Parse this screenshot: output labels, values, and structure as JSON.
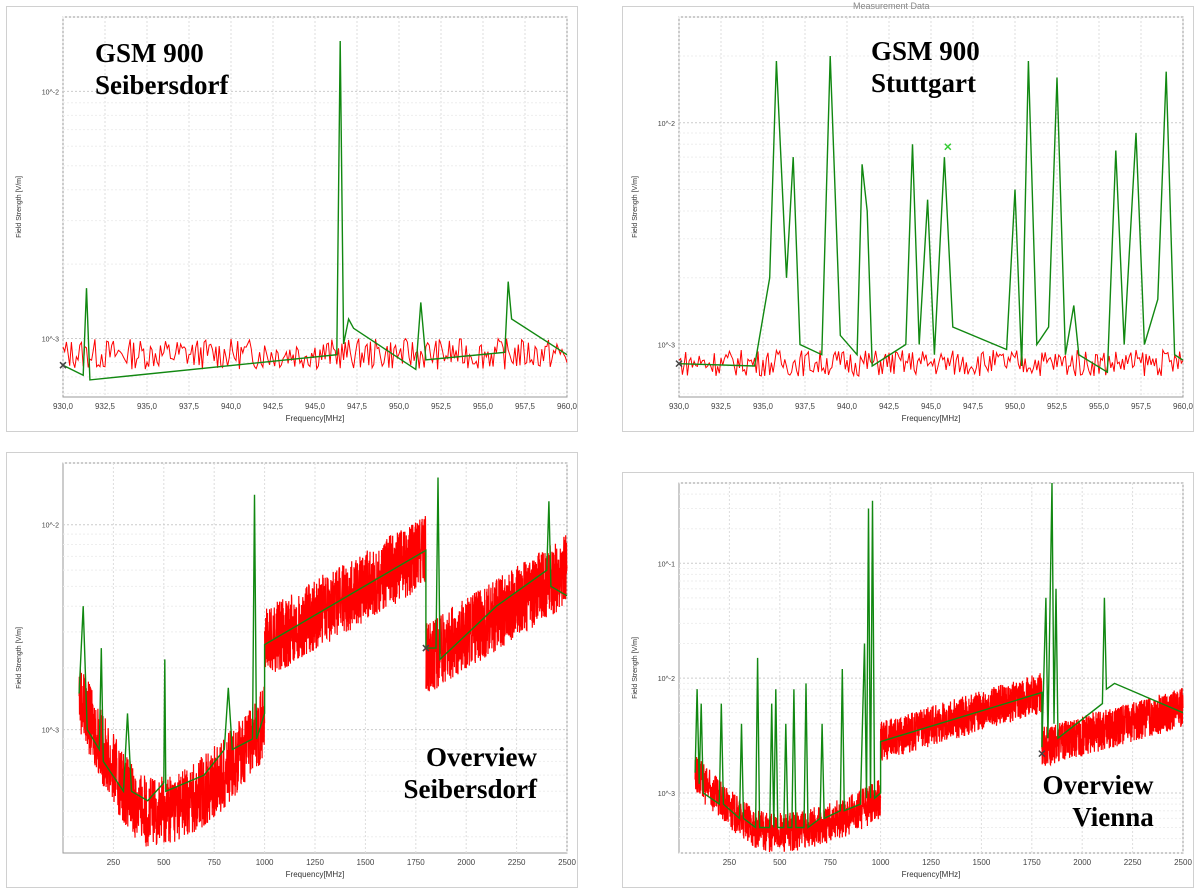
{
  "panels": [
    {
      "label_lines": [
        "GSM 900",
        "Seibersdorf"
      ],
      "top_title": "",
      "chart_data": {
        "type": "line",
        "xlabel": "Frequency[MHz]",
        "ylabel": "Field Strength [V/m]",
        "y_scale": "log",
        "xlim": [
          930,
          960
        ],
        "ylim": [
          0.00058,
          0.02
        ],
        "x_ticks": [
          "930,0",
          "932,5",
          "935,0",
          "937,5",
          "940,0",
          "942,5",
          "945,0",
          "947,5",
          "950,0",
          "952,5",
          "955,0",
          "957,5",
          "960,0"
        ],
        "y_ticks": [
          {
            "label": "10^-2",
            "value": 0.01
          },
          {
            "label": "10^-3",
            "value": 0.001
          }
        ],
        "noise": {
          "color": "#ff0000",
          "low": 0.00075,
          "high": 0.001,
          "n": 300
        },
        "series_green": {
          "color": "#118811",
          "points": [
            [
              930,
              0.00078
            ],
            [
              931.2,
              0.00071
            ],
            [
              931.4,
              0.0016
            ],
            [
              931.6,
              0.00068
            ],
            [
              946.3,
              0.00086
            ],
            [
              946.5,
              0.016
            ],
            [
              946.7,
              0.00095
            ],
            [
              947.0,
              0.0012
            ],
            [
              947.3,
              0.0011
            ],
            [
              951.0,
              0.00075
            ],
            [
              951.3,
              0.0014
            ],
            [
              951.6,
              0.00082
            ],
            [
              956.3,
              0.00088
            ],
            [
              956.5,
              0.0017
            ],
            [
              956.7,
              0.0012
            ],
            [
              960,
              0.00086
            ]
          ]
        },
        "marker": {
          "x": 930,
          "y": 0.00078,
          "color": "#444444"
        }
      }
    },
    {
      "label_lines": [
        "GSM 900",
        "Stuttgart"
      ],
      "top_title": "Measurement Data",
      "chart_data": {
        "type": "line",
        "xlabel": "Frequency[MHz]",
        "ylabel": "Field Strength [V/m]",
        "y_scale": "log",
        "xlim": [
          930,
          960
        ],
        "ylim": [
          0.00058,
          0.03
        ],
        "x_ticks": [
          "930,0",
          "932,5",
          "935,0",
          "937,5",
          "940,0",
          "942,5",
          "945,0",
          "947,5",
          "950,0",
          "952,5",
          "955,0",
          "957,5",
          "960,0"
        ],
        "y_ticks": [
          {
            "label": "10^-2",
            "value": 0.01
          },
          {
            "label": "10^-3",
            "value": 0.001
          }
        ],
        "noise": {
          "color": "#ff0000",
          "low": 0.00072,
          "high": 0.00095,
          "n": 300
        },
        "series_green": {
          "color": "#118811",
          "points": [
            [
              930,
              0.00082
            ],
            [
              934.5,
              0.0008
            ],
            [
              935.4,
              0.002
            ],
            [
              935.8,
              0.019
            ],
            [
              936.4,
              0.002
            ],
            [
              936.8,
              0.007
            ],
            [
              937.2,
              0.001
            ],
            [
              938.5,
              0.0009
            ],
            [
              939.0,
              0.02
            ],
            [
              939.6,
              0.0011
            ],
            [
              940.6,
              0.0009
            ],
            [
              940.9,
              0.0065
            ],
            [
              941.2,
              0.004
            ],
            [
              941.5,
              0.0008
            ],
            [
              943.5,
              0.001
            ],
            [
              943.9,
              0.008
            ],
            [
              944.3,
              0.001
            ],
            [
              944.8,
              0.0045
            ],
            [
              945.2,
              0.0009
            ],
            [
              945.8,
              0.007
            ],
            [
              946.3,
              0.0012
            ],
            [
              949.5,
              0.00095
            ],
            [
              950.0,
              0.005
            ],
            [
              950.4,
              0.0008
            ],
            [
              950.8,
              0.019
            ],
            [
              951.3,
              0.001
            ],
            [
              952.0,
              0.0012
            ],
            [
              952.5,
              0.016
            ],
            [
              953.0,
              0.0009
            ],
            [
              953.5,
              0.0015
            ],
            [
              953.8,
              0.0009
            ],
            [
              955.5,
              0.00075
            ],
            [
              956.0,
              0.0075
            ],
            [
              956.5,
              0.001
            ],
            [
              957.2,
              0.009
            ],
            [
              957.7,
              0.001
            ],
            [
              958.5,
              0.0016
            ],
            [
              959.0,
              0.017
            ],
            [
              959.5,
              0.0009
            ],
            [
              960,
              0.00085
            ]
          ]
        },
        "marker": {
          "x": 930,
          "y": 0.00082,
          "color": "#444444"
        },
        "marker2": {
          "x": 946.0,
          "y": 0.0078,
          "color": "#33cc33"
        }
      }
    },
    {
      "label_lines": [
        "Overview",
        "Seibersdorf"
      ],
      "top_title": "",
      "chart_data": {
        "type": "line",
        "xlabel": "Frequency[MHz]",
        "ylabel": "Field Strength [V/m]",
        "y_scale": "log",
        "xlim": [
          0,
          2500
        ],
        "ylim": [
          0.00025,
          0.02
        ],
        "x_ticks": [
          "250",
          "500",
          "750",
          "1000",
          "1250",
          "1500",
          "1750",
          "2000",
          "2250",
          "2500"
        ],
        "y_ticks": [
          {
            "label": "10^-2",
            "value": 0.01
          },
          {
            "label": "10^-3",
            "value": 0.001
          }
        ],
        "noise_segments": [
          {
            "x0": 80,
            "x1": 1000,
            "color": "#ff0000",
            "shape": "bowl",
            "left": 0.0015,
            "min": 0.0004,
            "minx": 420,
            "right": 0.0011
          },
          {
            "x0": 1000,
            "x1": 1800,
            "color": "#ff0000",
            "shape": "ramp",
            "left": 0.0026,
            "right": 0.0075
          },
          {
            "x0": 1800,
            "x1": 2500,
            "color": "#ff0000",
            "shape": "ramp",
            "left": 0.0022,
            "right": 0.006
          }
        ],
        "series_green": {
          "color": "#118811",
          "points": [
            [
              80,
              0.0015
            ],
            [
              100,
              0.004
            ],
            [
              120,
              0.001
            ],
            [
              180,
              0.0008
            ],
            [
              190,
              0.0025
            ],
            [
              200,
              0.0007
            ],
            [
              300,
              0.0005
            ],
            [
              320,
              0.0012
            ],
            [
              340,
              0.0005
            ],
            [
              420,
              0.00045
            ],
            [
              500,
              0.00055
            ],
            [
              505,
              0.0022
            ],
            [
              510,
              0.0005
            ],
            [
              700,
              0.0006
            ],
            [
              800,
              0.0008
            ],
            [
              820,
              0.0016
            ],
            [
              840,
              0.0008
            ],
            [
              940,
              0.0009
            ],
            [
              950,
              0.014
            ],
            [
              960,
              0.0009
            ],
            [
              1000,
              0.0012
            ],
            [
              1000,
              0.0026
            ],
            [
              1800,
              0.0075
            ],
            [
              1800,
              0.0025
            ],
            [
              1850,
              0.0025
            ],
            [
              1860,
              0.017
            ],
            [
              1870,
              0.0022
            ],
            [
              2150,
              0.004
            ],
            [
              2400,
              0.006
            ],
            [
              2410,
              0.013
            ],
            [
              2420,
              0.005
            ],
            [
              2500,
              0.0045
            ]
          ]
        },
        "marker": {
          "x": 1800,
          "y": 0.0025,
          "color": "#444444"
        }
      }
    },
    {
      "label_lines": [
        "Overview",
        "Vienna"
      ],
      "top_title": "",
      "chart_data": {
        "type": "line",
        "xlabel": "Frequency[MHz]",
        "ylabel": "Field Strength [V/m]",
        "y_scale": "log",
        "xlim": [
          0,
          2500
        ],
        "ylim": [
          0.0003,
          0.5
        ],
        "x_ticks": [
          "250",
          "500",
          "750",
          "1000",
          "1250",
          "1500",
          "1750",
          "2000",
          "2250",
          "2500"
        ],
        "y_ticks": [
          {
            "label": "10^-1",
            "value": 0.1
          },
          {
            "label": "10^-2",
            "value": 0.01
          },
          {
            "label": "10^-3",
            "value": 0.001
          }
        ],
        "noise_segments": [
          {
            "x0": 80,
            "x1": 1000,
            "color": "#ff0000",
            "shape": "bowl",
            "left": 0.0015,
            "min": 0.00045,
            "minx": 450,
            "right": 0.0009
          },
          {
            "x0": 1000,
            "x1": 1800,
            "color": "#ff0000",
            "shape": "ramp",
            "left": 0.0028,
            "right": 0.0075
          },
          {
            "x0": 1800,
            "x1": 2500,
            "color": "#ff0000",
            "shape": "ramp",
            "left": 0.0025,
            "right": 0.0055
          }
        ],
        "series_green": {
          "color": "#118811",
          "points": [
            [
              80,
              0.0015
            ],
            [
              90,
              0.008
            ],
            [
              100,
              0.0012
            ],
            [
              110,
              0.006
            ],
            [
              120,
              0.001
            ],
            [
              200,
              0.0008
            ],
            [
              210,
              0.006
            ],
            [
              220,
              0.0008
            ],
            [
              300,
              0.0006
            ],
            [
              310,
              0.004
            ],
            [
              320,
              0.0006
            ],
            [
              380,
              0.0005
            ],
            [
              390,
              0.015
            ],
            [
              400,
              0.0005
            ],
            [
              450,
              0.0005
            ],
            [
              460,
              0.006
            ],
            [
              470,
              0.0005
            ],
            [
              480,
              0.008
            ],
            [
              490,
              0.0005
            ],
            [
              520,
              0.0005
            ],
            [
              530,
              0.004
            ],
            [
              540,
              0.0005
            ],
            [
              560,
              0.0005
            ],
            [
              570,
              0.008
            ],
            [
              580,
              0.0005
            ],
            [
              620,
              0.0005
            ],
            [
              630,
              0.009
            ],
            [
              640,
              0.0005
            ],
            [
              700,
              0.0006
            ],
            [
              710,
              0.004
            ],
            [
              720,
              0.0006
            ],
            [
              800,
              0.0007
            ],
            [
              810,
              0.012
            ],
            [
              820,
              0.0007
            ],
            [
              900,
              0.0008
            ],
            [
              920,
              0.02
            ],
            [
              930,
              0.0009
            ],
            [
              940,
              0.3
            ],
            [
              950,
              0.0009
            ],
            [
              960,
              0.35
            ],
            [
              970,
              0.0009
            ],
            [
              1000,
              0.001
            ],
            [
              1000,
              0.0028
            ],
            [
              1800,
              0.0075
            ],
            [
              1800,
              0.0025
            ],
            [
              1820,
              0.05
            ],
            [
              1830,
              0.003
            ],
            [
              1850,
              0.5
            ],
            [
              1860,
              0.004
            ],
            [
              1870,
              0.06
            ],
            [
              1880,
              0.003
            ],
            [
              2100,
              0.006
            ],
            [
              2110,
              0.05
            ],
            [
              2120,
              0.008
            ],
            [
              2160,
              0.009
            ],
            [
              2500,
              0.005
            ]
          ]
        },
        "marker": {
          "x": 1800,
          "y": 0.0022,
          "color": "#444444"
        }
      }
    }
  ]
}
